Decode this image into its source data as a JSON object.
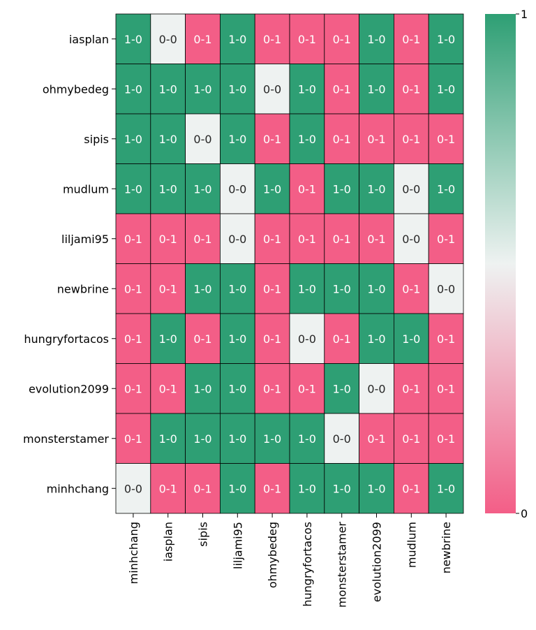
{
  "chart_data": {
    "type": "heatmap",
    "title": "",
    "xlabel": "",
    "ylabel": "",
    "rows": [
      "iasplan",
      "ohmybedeg",
      "sipis",
      "mudlum",
      "liljami95",
      "newbrine",
      "hungryfortacos",
      "evolution2099",
      "monsterstamer",
      "minhchang"
    ],
    "columns": [
      "minhchang",
      "iasplan",
      "sipis",
      "liljami95",
      "ohmybedeg",
      "hungryfortacos",
      "monsterstamer",
      "evolution2099",
      "mudlum",
      "newbrine"
    ],
    "values": [
      [
        1,
        0.5,
        0,
        1,
        0,
        0,
        0,
        1,
        0,
        1
      ],
      [
        1,
        1,
        1,
        1,
        0.5,
        1,
        0,
        1,
        0,
        1
      ],
      [
        1,
        1,
        0.5,
        1,
        0,
        1,
        0,
        0,
        0,
        0
      ],
      [
        1,
        1,
        1,
        0.5,
        1,
        0,
        1,
        1,
        0.5,
        1
      ],
      [
        0,
        0,
        0,
        0.5,
        0,
        0,
        0,
        0,
        0.5,
        0
      ],
      [
        0,
        0,
        1,
        1,
        0,
        1,
        1,
        1,
        0,
        0.5
      ],
      [
        0,
        1,
        0,
        1,
        0,
        0.5,
        0,
        1,
        1,
        0
      ],
      [
        0,
        0,
        1,
        1,
        0,
        0,
        1,
        0.5,
        0,
        0
      ],
      [
        0,
        1,
        1,
        1,
        1,
        1,
        0.5,
        0,
        0,
        0
      ],
      [
        0.5,
        0,
        0,
        1,
        0,
        1,
        1,
        1,
        0,
        1
      ]
    ],
    "annotations": [
      [
        "1-0",
        "0-0",
        "0-1",
        "1-0",
        "0-1",
        "0-1",
        "0-1",
        "1-0",
        "0-1",
        "1-0"
      ],
      [
        "1-0",
        "1-0",
        "1-0",
        "1-0",
        "0-0",
        "1-0",
        "0-1",
        "1-0",
        "0-1",
        "1-0"
      ],
      [
        "1-0",
        "1-0",
        "0-0",
        "1-0",
        "0-1",
        "1-0",
        "0-1",
        "0-1",
        "0-1",
        "0-1"
      ],
      [
        "1-0",
        "1-0",
        "1-0",
        "0-0",
        "1-0",
        "0-1",
        "1-0",
        "1-0",
        "0-0",
        "1-0"
      ],
      [
        "0-1",
        "0-1",
        "0-1",
        "0-0",
        "0-1",
        "0-1",
        "0-1",
        "0-1",
        "0-0",
        "0-1"
      ],
      [
        "0-1",
        "0-1",
        "1-0",
        "1-0",
        "0-1",
        "1-0",
        "1-0",
        "1-0",
        "0-1",
        "0-0"
      ],
      [
        "0-1",
        "1-0",
        "0-1",
        "1-0",
        "0-1",
        "0-0",
        "0-1",
        "1-0",
        "1-0",
        "0-1"
      ],
      [
        "0-1",
        "0-1",
        "1-0",
        "1-0",
        "0-1",
        "0-1",
        "1-0",
        "0-0",
        "0-1",
        "0-1"
      ],
      [
        "0-1",
        "1-0",
        "1-0",
        "1-0",
        "1-0",
        "1-0",
        "0-0",
        "0-1",
        "0-1",
        "0-1"
      ],
      [
        "0-0",
        "0-1",
        "0-1",
        "1-0",
        "0-1",
        "1-0",
        "1-0",
        "1-0",
        "0-1",
        "1-0"
      ]
    ],
    "colorbar": {
      "min": 0,
      "max": 1,
      "ticks": [
        "0",
        "1"
      ]
    },
    "colors": {
      "low": "#f35e87",
      "mid": "#eef2f1",
      "high": "#2e9f74",
      "grid": "#000000"
    }
  }
}
